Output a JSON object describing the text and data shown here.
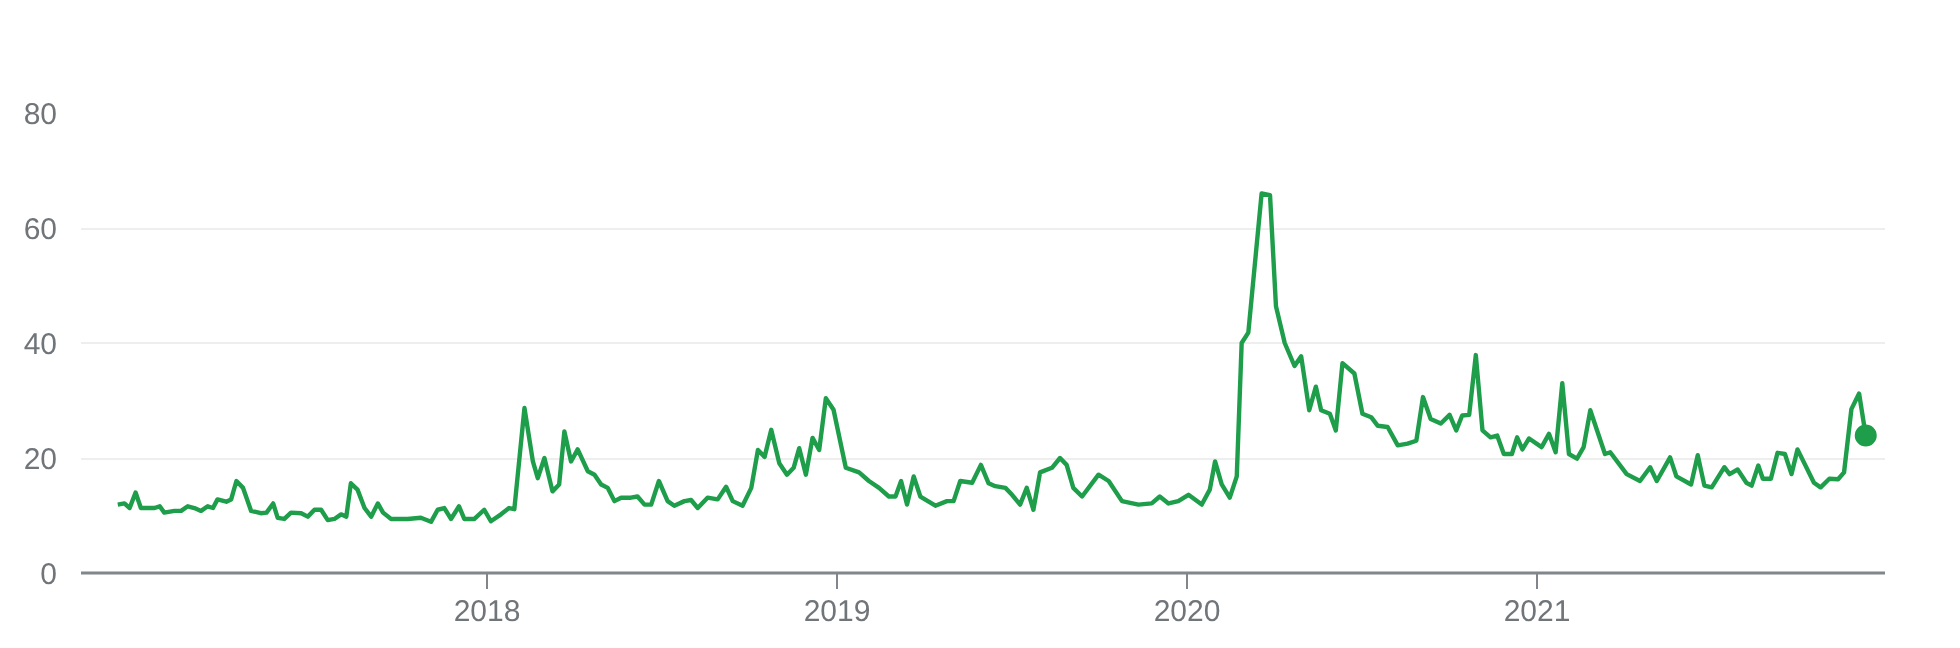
{
  "chart_data": {
    "type": "line",
    "xlim": [
      2016.84,
      2021.994
    ],
    "ylim": [
      0,
      80
    ],
    "xticks": [
      2018,
      2019,
      2020,
      2021
    ],
    "yticks": [
      0,
      20,
      40,
      60,
      80
    ],
    "grid": "y",
    "line_style": "solid",
    "series": [
      {
        "color": "#1e9e4a",
        "x": [
          2016.945,
          2016.964,
          2016.979,
          2016.996,
          2017.011,
          2017.05,
          2017.065,
          2017.078,
          2017.107,
          2017.126,
          2017.145,
          2017.164,
          2017.183,
          2017.202,
          2017.217,
          2017.23,
          2017.255,
          2017.269,
          2017.284,
          2017.303,
          2017.326,
          2017.354,
          2017.37,
          2017.389,
          2017.402,
          2017.421,
          2017.44,
          2017.469,
          2017.488,
          2017.507,
          2017.526,
          2017.545,
          2017.564,
          2017.583,
          2017.598,
          2017.611,
          2017.63,
          2017.65,
          2017.669,
          2017.688,
          2017.703,
          2017.726,
          2017.773,
          2017.811,
          2017.84,
          2017.859,
          2017.878,
          2017.897,
          2017.92,
          2017.935,
          2017.964,
          2017.992,
          2018.011,
          2018.04,
          2018.063,
          2018.078,
          2018.107,
          2018.131,
          2018.145,
          2018.164,
          2018.187,
          2018.206,
          2018.221,
          2018.24,
          2018.259,
          2018.288,
          2018.307,
          2018.326,
          2018.345,
          2018.364,
          2018.383,
          2018.411,
          2018.43,
          2018.45,
          2018.469,
          2018.491,
          2018.516,
          2018.535,
          2018.564,
          2018.583,
          2018.602,
          2018.63,
          2018.659,
          2018.683,
          2018.702,
          2018.73,
          2018.755,
          2018.774,
          2018.793,
          2018.812,
          2018.835,
          2018.857,
          2018.876,
          2018.892,
          2018.911,
          2018.93,
          2018.949,
          2018.968,
          2018.99,
          2019.025,
          2019.063,
          2019.091,
          2019.12,
          2019.148,
          2019.167,
          2019.183,
          2019.2,
          2019.219,
          2019.238,
          2019.281,
          2019.314,
          2019.333,
          2019.352,
          2019.386,
          2019.411,
          2019.433,
          2019.452,
          2019.481,
          2019.5,
          2019.523,
          2019.542,
          2019.561,
          2019.58,
          2019.614,
          2019.637,
          2019.656,
          2019.675,
          2019.7,
          2019.747,
          2019.776,
          2019.814,
          2019.861,
          2019.899,
          2019.922,
          2019.947,
          2019.975,
          2020.004,
          2020.042,
          2020.065,
          2020.08,
          2020.099,
          2020.122,
          2020.142,
          2020.156,
          2020.175,
          2020.213,
          2020.237,
          2020.254,
          2020.279,
          2020.307,
          2020.326,
          2020.349,
          2020.368,
          2020.383,
          2020.408,
          2020.425,
          2020.444,
          2020.478,
          2020.501,
          2020.526,
          2020.545,
          2020.573,
          2020.602,
          2020.63,
          2020.655,
          2020.674,
          2020.696,
          2020.725,
          2020.75,
          2020.769,
          2020.786,
          2020.806,
          2020.825,
          2020.844,
          2020.867,
          2020.886,
          2020.905,
          2020.928,
          2020.943,
          2020.958,
          2020.977,
          2021.013,
          2021.034,
          2021.053,
          2021.072,
          2021.091,
          2021.114,
          2021.133,
          2021.152,
          2021.194,
          2021.209,
          2021.256,
          2021.294,
          2021.323,
          2021.342,
          2021.38,
          2021.398,
          2021.44,
          2021.459,
          2021.478,
          2021.499,
          2021.535,
          2021.55,
          2021.573,
          2021.598,
          2021.613,
          2021.632,
          2021.645,
          2021.668,
          2021.687,
          2021.708,
          2021.727,
          2021.744,
          2021.791,
          2021.81,
          2021.835,
          2021.86,
          2021.877,
          2021.898,
          2021.92,
          2021.939
        ],
        "values": [
          11.9,
          12.1,
          11.3,
          14,
          11.3,
          11.3,
          11.6,
          10.5,
          10.8,
          10.8,
          11.6,
          11.3,
          10.8,
          11.6,
          11.3,
          12.8,
          12.4,
          12.8,
          16,
          14.8,
          10.8,
          10.4,
          10.5,
          12.1,
          9.6,
          9.4,
          10.5,
          10.4,
          9.8,
          11,
          11,
          9.2,
          9.4,
          10.2,
          9.8,
          15.6,
          14.5,
          11.3,
          9.8,
          12.1,
          10.5,
          9.4,
          9.4,
          9.6,
          8.9,
          11,
          11.3,
          9.4,
          11.6,
          9.4,
          9.4,
          11,
          9,
          10.2,
          11.3,
          11.1,
          28.7,
          19.4,
          16.5,
          20,
          14.2,
          15.4,
          24.6,
          19.4,
          21.5,
          17.7,
          17.1,
          15.4,
          14.8,
          12.5,
          13.1,
          13.1,
          13.3,
          11.9,
          11.9,
          16,
          12.5,
          11.7,
          12.5,
          12.7,
          11.3,
          13.1,
          12.8,
          15,
          12.5,
          11.7,
          14.8,
          21.4,
          20.2,
          24.9,
          19.1,
          17.1,
          18.3,
          21.7,
          17.1,
          23.5,
          21.4,
          30.4,
          28.4,
          18.3,
          17.5,
          16,
          14.8,
          13.3,
          13.3,
          16,
          11.9,
          16.8,
          13.3,
          11.7,
          12.5,
          12.5,
          16,
          15.7,
          18.8,
          15.6,
          15.1,
          14.8,
          13.6,
          11.9,
          14.8,
          11,
          17.5,
          18.3,
          20,
          18.8,
          14.8,
          13.3,
          17.1,
          16,
          12.5,
          11.9,
          12.1,
          13.3,
          12.1,
          12.5,
          13.6,
          11.9,
          14.5,
          19.4,
          15.4,
          13.1,
          16.8,
          40,
          41.8,
          66,
          65.7,
          46.4,
          40,
          36,
          37.7,
          28.3,
          32.4,
          28.3,
          27.7,
          24.8,
          36.5,
          34.7,
          27.7,
          27.1,
          25.6,
          25.4,
          22.2,
          22.5,
          23,
          30.6,
          26.8,
          26,
          27.5,
          24.8,
          27.4,
          27.5,
          37.9,
          24.8,
          23.6,
          23.9,
          20.7,
          20.7,
          23.6,
          21.5,
          23.4,
          21.9,
          24.2,
          21,
          33,
          20.7,
          19.9,
          21.9,
          28.3,
          20.7,
          21,
          17.2,
          16,
          18.4,
          16,
          20.1,
          16.8,
          15.4,
          20.5,
          15.2,
          14.9,
          18.4,
          17.2,
          18,
          15.7,
          15.2,
          18.7,
          16.4,
          16.4,
          20.9,
          20.7,
          17.2,
          21.5,
          15.7,
          14.9,
          16.4,
          16.3,
          17.5,
          28.5,
          31.2,
          23.9
        ]
      },
      {
        "type": "scatter",
        "marker": "circle",
        "color": "#1e9e4a",
        "x": [
          2021.939
        ],
        "values": [
          23.9
        ]
      }
    ]
  }
}
